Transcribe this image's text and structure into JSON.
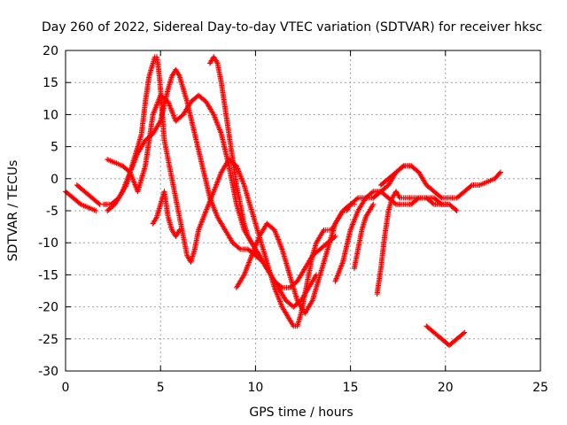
{
  "chart_data": {
    "type": "scatter",
    "title": "Day 260 of 2022, Sidereal Day-to-day VTEC variation (SDTVAR) for receiver hksc",
    "xlabel": "GPS time / hours",
    "ylabel": "SDTVAR / TECUs",
    "xlim": [
      0,
      25
    ],
    "ylim": [
      -30,
      20
    ],
    "xticks": [
      "0",
      "5",
      "10",
      "15",
      "20",
      "25"
    ],
    "yticks": [
      "20",
      "15",
      "10",
      "5",
      "0",
      "-5",
      "-10",
      "-15",
      "-20",
      "-25",
      "-30"
    ],
    "grid": true,
    "marker": "+",
    "color": "#ff0000",
    "series": [
      {
        "name": "arc-1",
        "x": [
          0,
          0.4,
          0.8,
          1.2,
          1.6
        ],
        "y": [
          -2,
          -3,
          -4,
          -4.5,
          -5
        ]
      },
      {
        "name": "arc-2",
        "x": [
          0.6,
          1.0,
          1.4,
          1.8
        ],
        "y": [
          -1,
          -2,
          -3,
          -4
        ]
      },
      {
        "name": "arc-3",
        "x": [
          2.0,
          2.4,
          2.8,
          3.2,
          3.6,
          4.0,
          4.2,
          4.4,
          4.6,
          4.7,
          4.8,
          4.9,
          5.0,
          5.1,
          5.2,
          5.4,
          5.6,
          5.8,
          6.0,
          6.2,
          6.4,
          6.6,
          6.8,
          7.0,
          7.4,
          7.8,
          8.2,
          8.6,
          9.0,
          9.4,
          9.8,
          10.2,
          10.6,
          11.0,
          11.4,
          11.8,
          12.0,
          12.2,
          12.4,
          12.6,
          12.8,
          13.0,
          13.2,
          13.4,
          13.6,
          13.8,
          14.0,
          14.2,
          14.4,
          14.6,
          14.8,
          15.0,
          15.2
        ],
        "y": [
          -4,
          -4,
          -3,
          -1,
          3,
          7,
          12,
          16,
          18,
          19,
          19,
          17,
          14,
          10,
          6,
          3,
          0,
          -3,
          -6,
          -9,
          -12,
          -13,
          -11,
          -8,
          -5,
          -2,
          1,
          3,
          2,
          -1,
          -5,
          -9,
          -13,
          -17,
          -20,
          -22,
          -23,
          -23,
          -21,
          -18,
          -15,
          -12,
          -10,
          -9,
          -8,
          -8,
          -8,
          -7,
          -6,
          -5,
          -5,
          -4,
          -4
        ]
      },
      {
        "name": "arc-4",
        "x": [
          2.2,
          2.6,
          3.0,
          3.4,
          3.8,
          4.2,
          4.6,
          5.0,
          5.4,
          5.6,
          5.8,
          6.0,
          6.4,
          6.8,
          7.2,
          7.6,
          8.0,
          8.4,
          8.8,
          9.2,
          9.6,
          10.0,
          10.4,
          10.8,
          11.2,
          11.6,
          12.0,
          12.4,
          12.8,
          13.2
        ],
        "y": [
          -5,
          -4,
          -2,
          1,
          4,
          6,
          7,
          9,
          14,
          16,
          17,
          16,
          12,
          7,
          2,
          -3,
          -6,
          -8,
          -10,
          -11,
          -11,
          -12,
          -13,
          -15,
          -17,
          -19,
          -20,
          -19,
          -17,
          -15
        ]
      },
      {
        "name": "arc-5",
        "x": [
          2.2,
          2.6,
          3.0,
          3.4,
          3.8,
          4.2,
          4.6,
          5.0,
          5.4,
          5.8,
          6.2,
          6.6,
          7.0,
          7.4,
          7.8,
          8.2,
          8.6,
          9.0,
          9.4,
          9.8,
          10.2,
          10.6,
          11.0,
          11.4,
          11.8,
          12.2,
          12.6,
          13.0,
          13.4,
          13.8,
          14.2
        ],
        "y": [
          3,
          2.5,
          2,
          1,
          -2,
          2,
          10,
          13,
          12,
          9,
          10,
          12,
          13,
          12,
          10,
          7,
          2,
          -4,
          -8,
          -10,
          -12,
          -14,
          -16,
          -17,
          -17,
          -16,
          -14,
          -12,
          -11,
          -10,
          -9
        ]
      },
      {
        "name": "arc-6",
        "x": [
          4.6,
          4.8,
          5.0,
          5.2,
          5.4,
          5.6,
          5.8,
          6.0
        ],
        "y": [
          -7,
          -6,
          -4,
          -2,
          -6,
          -8,
          -9,
          -8
        ]
      },
      {
        "name": "arc-7",
        "x": [
          7.6,
          7.8,
          8.0,
          8.2,
          8.4,
          8.6,
          8.8,
          9.0,
          9.2,
          9.4,
          9.6,
          9.8,
          10.0,
          10.2,
          10.4,
          10.6,
          10.8
        ],
        "y": [
          18,
          19,
          18,
          15,
          11,
          7,
          3,
          -1,
          -4,
          -7,
          -9,
          -10,
          -11,
          -12,
          -13,
          -14,
          -15
        ]
      },
      {
        "name": "arc-8",
        "x": [
          9.0,
          9.4,
          9.8,
          10.2,
          10.6,
          11.0,
          11.4,
          11.8,
          12.2,
          12.6,
          13.0,
          13.4,
          13.8,
          14.2,
          14.6,
          15.0,
          15.4,
          15.8,
          16.2,
          16.6,
          17.0,
          17.4,
          17.8,
          18.2
        ],
        "y": [
          -17,
          -15,
          -12,
          -9,
          -7,
          -8,
          -11,
          -15,
          -19,
          -21,
          -19,
          -15,
          -11,
          -7,
          -5,
          -4,
          -3,
          -3,
          -3,
          -2,
          -1,
          1,
          2,
          2
        ]
      },
      {
        "name": "arc-9",
        "x": [
          14.2,
          14.6,
          15.0,
          15.4,
          15.8,
          16.2,
          16.6,
          17.0,
          17.4,
          17.8,
          18.2,
          18.6,
          19.0,
          19.4,
          19.8,
          20.2,
          20.6
        ],
        "y": [
          -16,
          -13,
          -8,
          -5,
          -3,
          -2,
          -2,
          -3,
          -4,
          -4,
          -4,
          -3,
          -3,
          -3,
          -4,
          -4,
          -5
        ]
      },
      {
        "name": "arc-10",
        "x": [
          15.2,
          15.4,
          15.6,
          15.8,
          16.0,
          16.2
        ],
        "y": [
          -14,
          -11,
          -8,
          -6,
          -5,
          -4
        ]
      },
      {
        "name": "arc-11",
        "x": [
          16.4,
          16.6,
          16.8,
          17.0,
          17.2,
          17.4,
          17.6,
          17.8,
          18.2,
          18.6,
          19.0,
          19.4,
          19.8,
          20.2
        ],
        "y": [
          -18,
          -14,
          -9,
          -5,
          -3,
          -2,
          -3,
          -3,
          -3,
          -3,
          -3,
          -4,
          -4,
          -4
        ]
      },
      {
        "name": "arc-12",
        "x": [
          16.6,
          17.0,
          17.4,
          17.8,
          18.2,
          18.6,
          19.0,
          19.4,
          19.8,
          20.2,
          20.6,
          21.0,
          21.4,
          21.8,
          22.2,
          22.6,
          22.9
        ],
        "y": [
          -1,
          0,
          1,
          2,
          2,
          1,
          -1,
          -2,
          -3,
          -3,
          -3,
          -2,
          -1,
          -1,
          -0.5,
          0,
          1
        ]
      },
      {
        "name": "arc-13",
        "x": [
          19.0,
          19.4,
          19.8,
          20.2,
          20.6,
          21.0
        ],
        "y": [
          -23,
          -24,
          -25,
          -26,
          -25,
          -24
        ]
      }
    ]
  }
}
